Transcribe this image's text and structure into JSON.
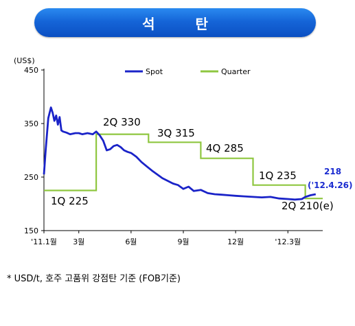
{
  "title": "석 탄",
  "footnote": "* USD/t, 호주 고품위 강점탄 기준 (FOB기준)",
  "chart_data": {
    "type": "line",
    "yunit": "(US$)",
    "ylim": [
      150,
      450
    ],
    "yticks": [
      "450",
      "350",
      "250",
      "150"
    ],
    "ytick_values": [
      450,
      350,
      250,
      150
    ],
    "xlim": [
      0,
      16
    ],
    "xticks": [
      "'11.1월",
      "3월",
      "6월",
      "9월",
      "12월",
      "'12.3월"
    ],
    "xtick_values": [
      0,
      2,
      5,
      8,
      11,
      14
    ],
    "legend_position": "top-right",
    "series": [
      {
        "name": "Spot",
        "color": "#1a23c8",
        "x": [
          0.0,
          0.1,
          0.25,
          0.4,
          0.5,
          0.6,
          0.7,
          0.8,
          0.9,
          1.0,
          1.1,
          1.3,
          1.5,
          1.8,
          2.0,
          2.2,
          2.5,
          2.8,
          3.0,
          3.2,
          3.4,
          3.6,
          3.8,
          4.0,
          4.2,
          4.4,
          4.6,
          4.8,
          5.0,
          5.3,
          5.6,
          5.9,
          6.2,
          6.5,
          6.8,
          7.1,
          7.4,
          7.7,
          8.0,
          8.3,
          8.6,
          9.0,
          9.4,
          9.8,
          10.2,
          10.6,
          11.0,
          11.5,
          12.0,
          12.5,
          13.0,
          13.5,
          14.0,
          14.4,
          14.8,
          15.0,
          15.3,
          15.6
        ],
        "y": [
          255,
          300,
          360,
          380,
          370,
          355,
          365,
          348,
          362,
          337,
          335,
          333,
          330,
          332,
          332,
          330,
          332,
          330,
          335,
          328,
          318,
          300,
          302,
          308,
          310,
          306,
          300,
          297,
          295,
          288,
          278,
          270,
          262,
          255,
          248,
          243,
          238,
          235,
          228,
          232,
          224,
          226,
          220,
          218,
          217,
          216,
          215,
          214,
          213,
          212,
          213,
          210,
          209,
          208,
          209,
          213,
          216,
          218
        ]
      },
      {
        "name": "Quarter",
        "color": "#8ec63f",
        "x": [
          0,
          3,
          3,
          6,
          6,
          9,
          9,
          12,
          12,
          15,
          15,
          16
        ],
        "y": [
          225,
          225,
          330,
          330,
          315,
          315,
          285,
          285,
          235,
          235,
          210,
          210
        ]
      }
    ],
    "quarter_labels": [
      "1Q 225",
      "2Q 330",
      "3Q 315",
      "4Q 285",
      "1Q 235",
      "2Q 210(e)"
    ],
    "annotation": [
      "218",
      "('12.4.26)"
    ]
  }
}
